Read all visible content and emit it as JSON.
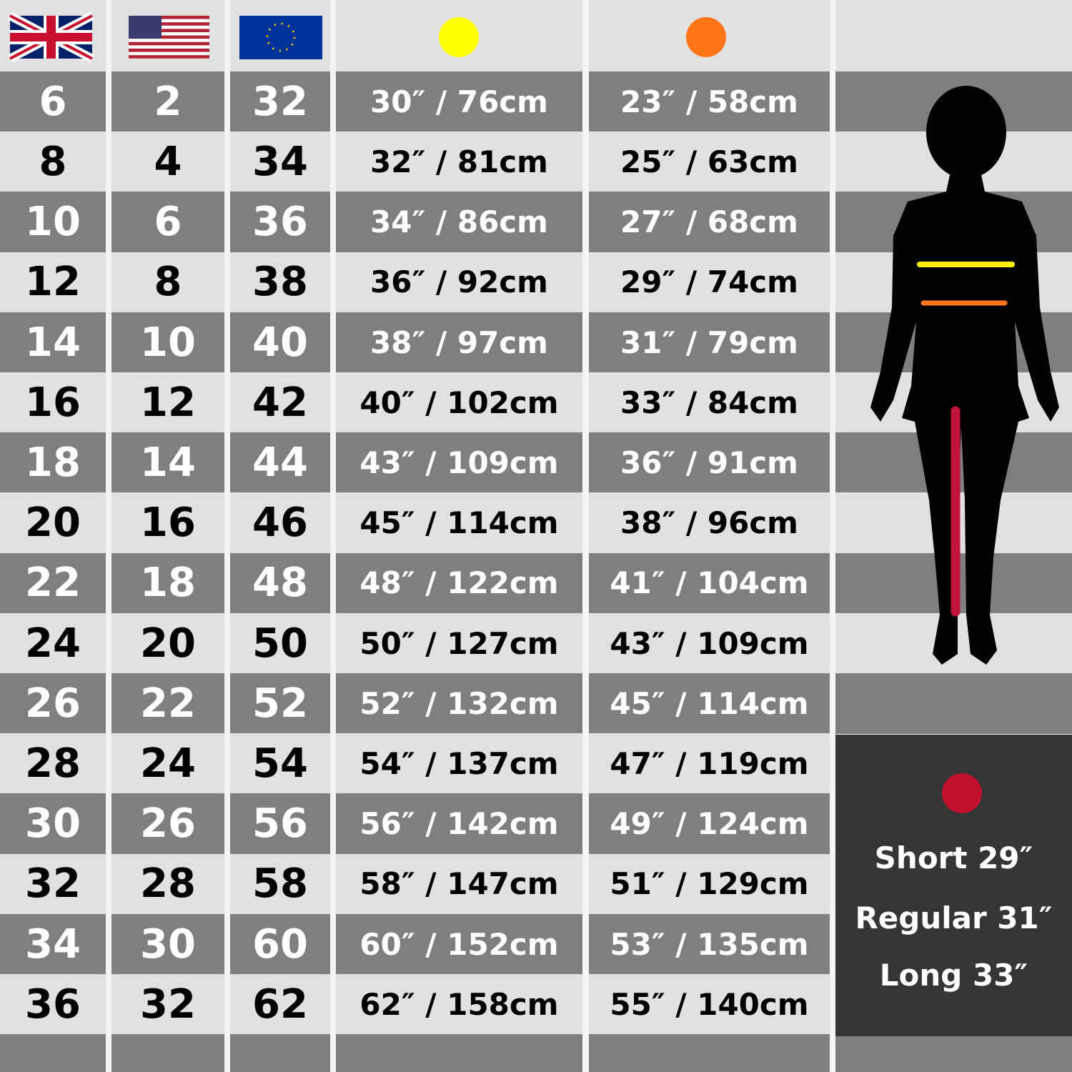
{
  "table": {
    "columns": [
      "uk",
      "us",
      "eu",
      "bust",
      "waist"
    ],
    "rows": [
      [
        "6",
        "2",
        "32",
        "30″ / 76cm",
        "23″ / 58cm"
      ],
      [
        "8",
        "4",
        "34",
        "32″ / 81cm",
        "25″ / 63cm"
      ],
      [
        "10",
        "6",
        "36",
        "34″ / 86cm",
        "27″ / 68cm"
      ],
      [
        "12",
        "8",
        "38",
        "36″ / 92cm",
        "29″ / 74cm"
      ],
      [
        "14",
        "10",
        "40",
        "38″ / 97cm",
        "31″ / 79cm"
      ],
      [
        "16",
        "12",
        "42",
        "40″ / 102cm",
        "33″ / 84cm"
      ],
      [
        "18",
        "14",
        "44",
        "43″ / 109cm",
        "36″ / 91cm"
      ],
      [
        "20",
        "16",
        "46",
        "45″ / 114cm",
        "38″ / 96cm"
      ],
      [
        "22",
        "18",
        "48",
        "48″ / 122cm",
        "41″ / 104cm"
      ],
      [
        "24",
        "20",
        "50",
        "50″ / 127cm",
        "43″ / 109cm"
      ],
      [
        "26",
        "22",
        "52",
        "52″ / 132cm",
        "45″ / 114cm"
      ],
      [
        "28",
        "24",
        "54",
        "54″ / 137cm",
        "47″ / 119cm"
      ],
      [
        "30",
        "26",
        "56",
        "56″ / 142cm",
        "49″ / 124cm"
      ],
      [
        "32",
        "28",
        "58",
        "58″ / 147cm",
        "51″ / 129cm"
      ],
      [
        "34",
        "30",
        "60",
        "60″ / 152cm",
        "53″ / 135cm"
      ],
      [
        "36",
        "32",
        "62",
        "62″ / 158cm",
        "55″ / 140cm"
      ]
    ]
  },
  "inseam": [
    "Short 29″",
    "Regular 31″",
    "Long 33″"
  ]
}
